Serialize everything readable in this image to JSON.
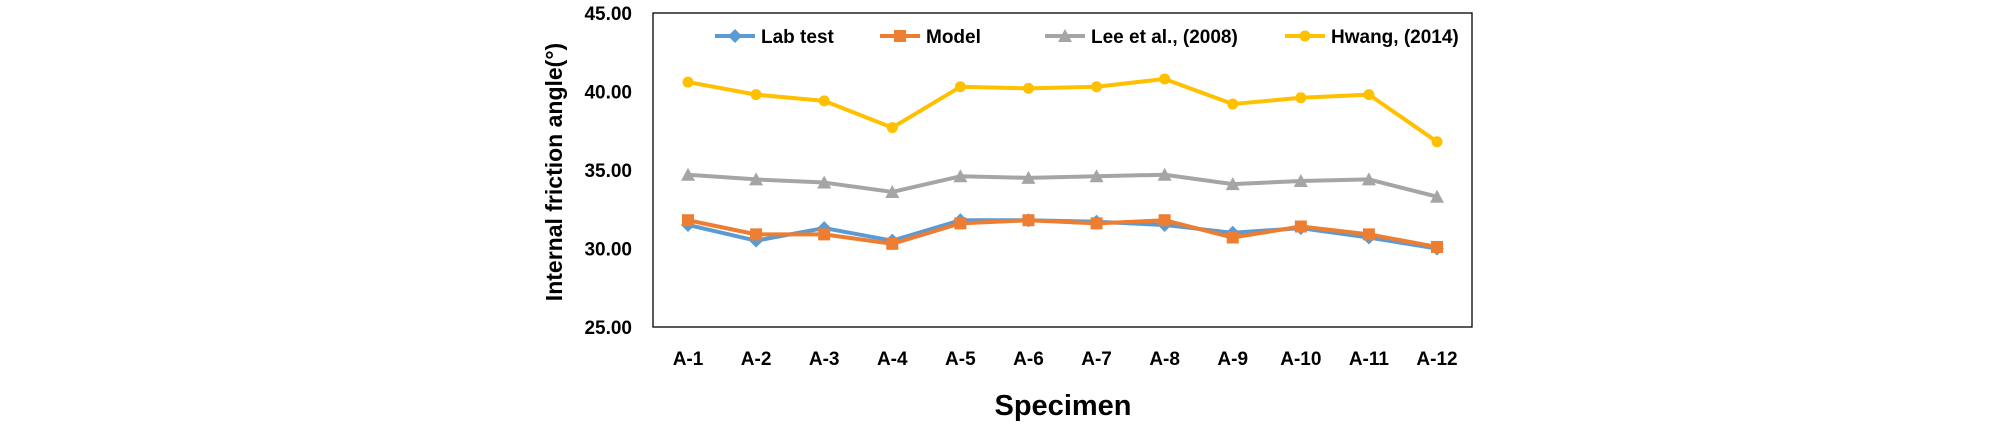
{
  "chart_data": {
    "type": "line",
    "title": "",
    "xlabel": "Specimen",
    "ylabel": "Internal friction angle(°)",
    "categories": [
      "A-1",
      "A-2",
      "A-3",
      "A-4",
      "A-5",
      "A-6",
      "A-7",
      "A-8",
      "A-9",
      "A-10",
      "A-11",
      "A-12"
    ],
    "ylim": [
      25,
      45
    ],
    "yticks": [
      "25.00",
      "30.00",
      "35.00",
      "40.00",
      "45.00"
    ],
    "grid": false,
    "legend_position": "top",
    "series": [
      {
        "name": "Lab test",
        "color": "#5B9BD5",
        "marker": "diamond",
        "values": [
          31.5,
          30.5,
          31.3,
          30.5,
          31.8,
          31.8,
          31.7,
          31.5,
          31.0,
          31.3,
          30.7,
          30.0
        ]
      },
      {
        "name": "Model",
        "color": "#ED7D31",
        "marker": "square",
        "values": [
          31.8,
          30.9,
          30.9,
          30.3,
          31.6,
          31.8,
          31.6,
          31.8,
          30.7,
          31.4,
          30.9,
          30.1
        ]
      },
      {
        "name": "Lee et al., (2008)",
        "color": "#A5A5A5",
        "marker": "triangle",
        "values": [
          34.7,
          34.4,
          34.2,
          33.6,
          34.6,
          34.5,
          34.6,
          34.7,
          34.1,
          34.3,
          34.4,
          33.3
        ]
      },
      {
        "name": "Hwang, (2014)",
        "color": "#FFC000",
        "marker": "circle",
        "values": [
          40.6,
          39.8,
          39.4,
          37.7,
          40.3,
          40.2,
          40.3,
          40.8,
          39.2,
          39.6,
          39.8,
          36.8
        ]
      }
    ]
  }
}
